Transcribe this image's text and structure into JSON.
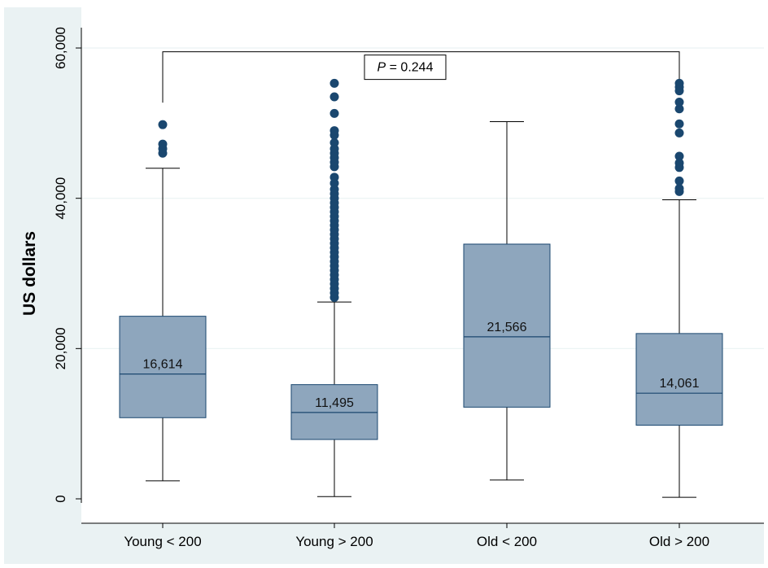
{
  "chart_data": {
    "type": "box",
    "ylabel": "US dollars",
    "ylim": [
      0,
      60000
    ],
    "yticks": [
      0,
      20000,
      40000,
      60000
    ],
    "ytick_labels": [
      "0",
      "20,000",
      "40,000",
      "60,000"
    ],
    "grid": true,
    "categories": [
      "Young < 200",
      "Young > 200",
      "Old < 200",
      "Old > 200"
    ],
    "boxes": [
      {
        "category": "Young < 200",
        "whisker_low": 2400,
        "q1": 10800,
        "median": 16614,
        "median_label": "16,614",
        "q3": 24300,
        "whisker_high": 44000,
        "outliers": [
          46000,
          46600,
          47200,
          49800
        ]
      },
      {
        "category": "Young > 200",
        "whisker_low": 300,
        "q1": 7900,
        "median": 11495,
        "median_label": "11,495",
        "q3": 15200,
        "whisker_high": 26200,
        "outliers": [
          26800,
          27400,
          28000,
          28600,
          29200,
          29800,
          30400,
          31000,
          31600,
          32200,
          32800,
          33400,
          34000,
          34600,
          35200,
          35800,
          36400,
          37000,
          37600,
          38200,
          38800,
          39400,
          40000,
          40600,
          41200,
          42000,
          42800,
          44200,
          44800,
          45400,
          46000,
          46600,
          47400,
          48400,
          49000,
          51300,
          53500,
          55300
        ]
      },
      {
        "category": "Old < 200",
        "whisker_low": 2500,
        "q1": 12200,
        "median": 21566,
        "median_label": "21,566",
        "q3": 33900,
        "whisker_high": 50200,
        "outliers": []
      },
      {
        "category": "Old > 200",
        "whisker_low": 200,
        "q1": 9800,
        "median": 14061,
        "median_label": "14,061",
        "q3": 22000,
        "whisker_high": 39800,
        "outliers": [
          40900,
          41300,
          42300,
          44100,
          44700,
          45600,
          48700,
          49900,
          51900,
          52800,
          54300,
          54800,
          55300
        ]
      }
    ],
    "comparison": {
      "from": "Young < 200",
      "to": "Old > 200",
      "y": 59500,
      "p_symbol": "P",
      "p_rest": " = 0.244"
    },
    "colors": {
      "box_fill": "#8ea6bd",
      "box_stroke": "#1a476f",
      "outlier": "#1a476f",
      "background": "#eaf2f3",
      "plot_bg": "#ffffff",
      "grid": "#eaf2f3"
    }
  }
}
